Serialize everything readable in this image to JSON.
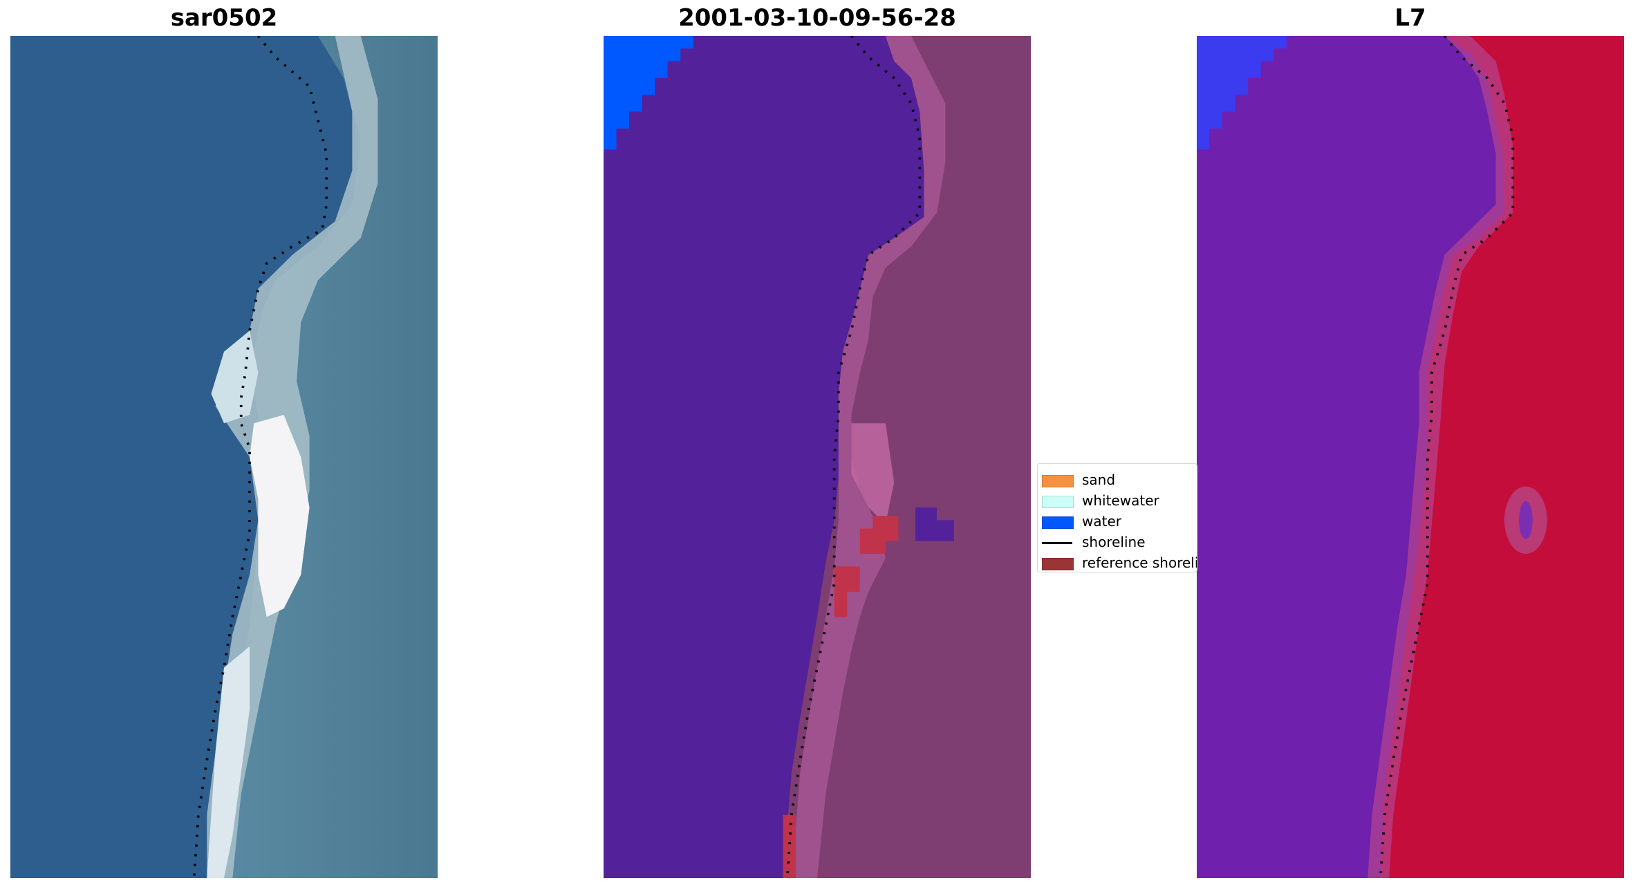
{
  "panels": [
    {
      "title": "sar0502"
    },
    {
      "title": "2001-03-10-09-56-28"
    },
    {
      "title": "L7"
    }
  ],
  "legend": {
    "items": [
      {
        "label": "sand",
        "color": "#f7913d",
        "kind": "patch"
      },
      {
        "label": "whitewater",
        "color": "#ccfff5",
        "kind": "patch"
      },
      {
        "label": "water",
        "color": "#0057ff",
        "kind": "patch"
      },
      {
        "label": "shoreline",
        "color": "#000000",
        "kind": "line"
      },
      {
        "label": "reference shoreline",
        "color": "#9b3434",
        "kind": "patch"
      }
    ]
  },
  "colors": {
    "rgb_water": "#2d5d8d",
    "classified_water": "#5120a0",
    "classified_land": "#7e3e72",
    "classified_water_ocean": "#0058ff",
    "ndwi_land": "#c50d3c",
    "ndwi_water": "#6a1ca8"
  }
}
